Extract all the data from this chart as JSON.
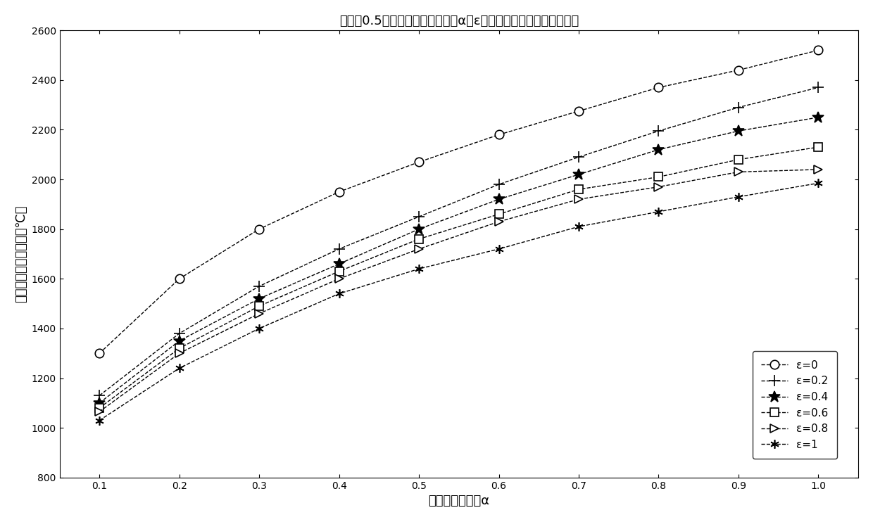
{
  "title": "距日心0.5倍太阳半径轨道处不同α和ε的热防护缩平衡温度变化曲线",
  "xlabel": "太阳辐射吸收率α",
  "ylabel": "热防护缩的平衡温度（℃）",
  "alpha_values": [
    0.1,
    0.2,
    0.3,
    0.4,
    0.5,
    0.6,
    0.7,
    0.8,
    0.9,
    1.0
  ],
  "series": [
    {
      "label": "ε=0",
      "marker": "o",
      "values": [
        1300,
        1600,
        1800,
        1950,
        2070,
        2180,
        2275,
        2370,
        2440,
        2520
      ]
    },
    {
      "label": "ε=0.2",
      "marker": "+",
      "values": [
        1130,
        1380,
        1570,
        1720,
        1850,
        1980,
        2090,
        2195,
        2290,
        2370
      ]
    },
    {
      "label": "ε=0.4",
      "marker": "*",
      "values": [
        1100,
        1350,
        1520,
        1660,
        1800,
        1920,
        2020,
        2120,
        2195,
        2250
      ]
    },
    {
      "label": "ε=0.6",
      "marker": "s",
      "values": [
        1080,
        1320,
        1490,
        1630,
        1760,
        1860,
        1960,
        2010,
        2080,
        2130
      ]
    },
    {
      "label": "ε=0.8",
      "marker": ">",
      "values": [
        1065,
        1300,
        1460,
        1600,
        1720,
        1830,
        1920,
        1970,
        2030,
        2040
      ]
    },
    {
      "label": "ε=1",
      "marker": "star",
      "values": [
        1030,
        1240,
        1400,
        1540,
        1640,
        1720,
        1810,
        1870,
        1930,
        1985
      ]
    }
  ],
  "xlim": [
    0.05,
    1.05
  ],
  "ylim": [
    800,
    2600
  ],
  "yticks": [
    800,
    1000,
    1200,
    1400,
    1600,
    1800,
    2000,
    2200,
    2400,
    2600
  ],
  "xticks": [
    0.1,
    0.2,
    0.3,
    0.4,
    0.5,
    0.6,
    0.7,
    0.8,
    0.9,
    1.0
  ],
  "line_color": "#000000",
  "background_color": "#ffffff",
  "figsize": [
    12.4,
    7.42
  ],
  "dpi": 100
}
